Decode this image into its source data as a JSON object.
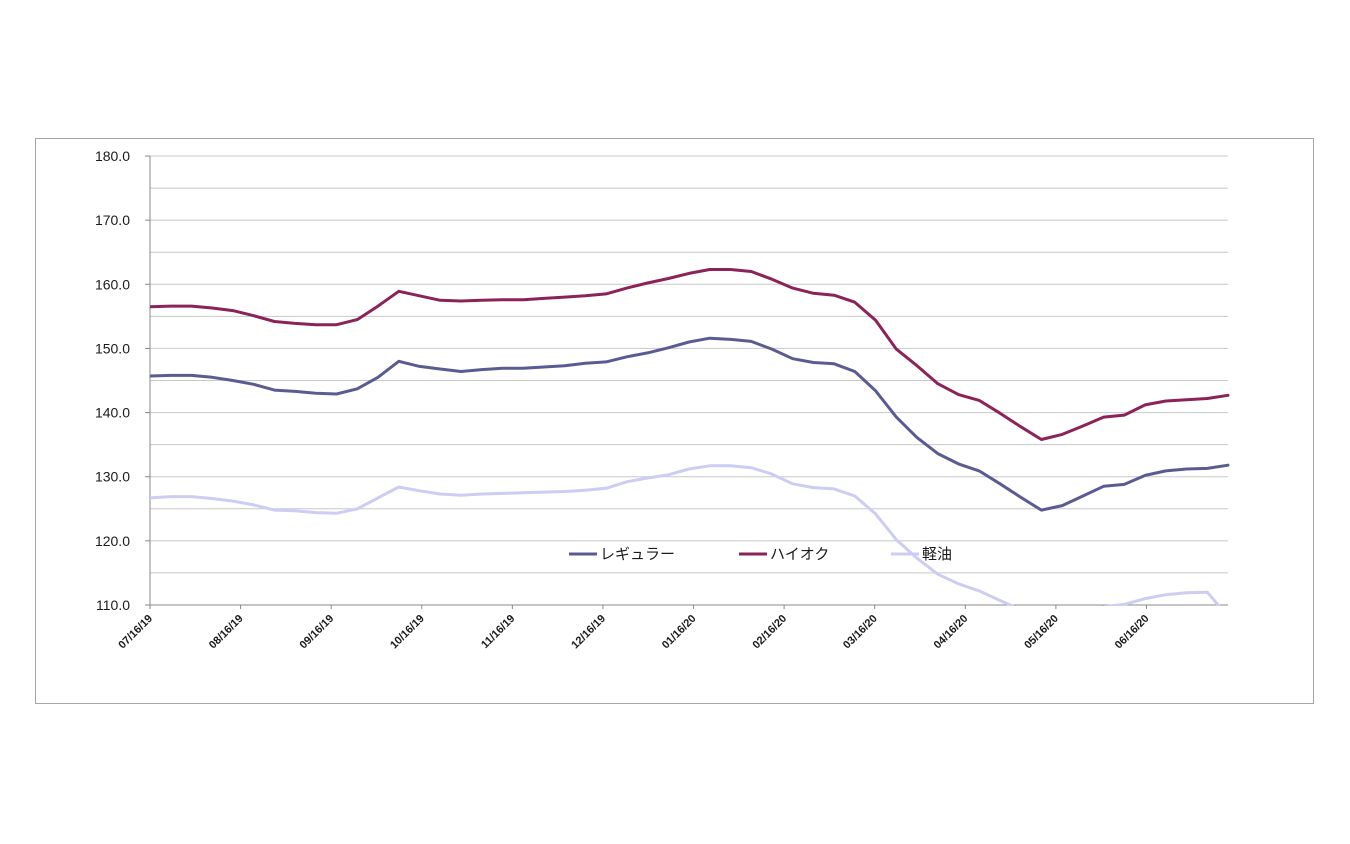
{
  "chart_data": {
    "type": "line",
    "title": "",
    "xlabel": "",
    "ylabel": "",
    "ylim": [
      110,
      180
    ],
    "yticks": [
      "110.0",
      "120.0",
      "130.0",
      "140.0",
      "150.0",
      "160.0",
      "170.0",
      "180.0"
    ],
    "grid": true,
    "legend_position": "bottom-center (inside plot)",
    "x_tick_labels": [
      "07/16/19",
      "08/16/19",
      "09/16/19",
      "10/16/19",
      "11/16/19",
      "12/16/19",
      "01/16/20",
      "02/16/20",
      "03/16/20",
      "04/16/20",
      "05/16/20",
      "06/16/20"
    ],
    "series": [
      {
        "name": "レギュラー",
        "color": "#5b5b93",
        "values": [
          145.7,
          145.8,
          145.8,
          145.5,
          145.0,
          144.4,
          143.5,
          143.3,
          143.0,
          142.9,
          143.7,
          145.5,
          148.0,
          147.2,
          146.8,
          146.4,
          146.7,
          146.9,
          146.9,
          147.1,
          147.3,
          147.7,
          147.9,
          148.7,
          149.3,
          150.1,
          151.0,
          151.6,
          151.4,
          151.1,
          149.9,
          148.4,
          147.8,
          147.6,
          146.4,
          143.4,
          139.3,
          136.1,
          133.6,
          132.0,
          130.9,
          128.9,
          126.8,
          124.8,
          125.5,
          127.0,
          128.5,
          128.8,
          130.2,
          130.9,
          131.2,
          131.3,
          131.8
        ]
      },
      {
        "name": "ハイオク",
        "color": "#8b2259",
        "values": [
          156.5,
          156.6,
          156.6,
          156.3,
          155.9,
          155.1,
          154.2,
          153.9,
          153.7,
          153.7,
          154.5,
          156.6,
          158.9,
          158.2,
          157.5,
          157.4,
          157.5,
          157.6,
          157.6,
          157.8,
          158.0,
          158.2,
          158.5,
          159.4,
          160.2,
          160.9,
          161.7,
          162.3,
          162.3,
          162.0,
          160.8,
          159.4,
          158.6,
          158.3,
          157.2,
          154.4,
          149.9,
          147.3,
          144.5,
          142.8,
          141.9,
          139.9,
          137.8,
          135.8,
          136.6,
          137.9,
          139.3,
          139.6,
          141.2,
          141.8,
          142.0,
          142.2,
          142.7
        ]
      },
      {
        "name": "軽油",
        "color": "#ccccf5",
        "values": [
          126.7,
          126.9,
          126.9,
          126.6,
          126.2,
          125.6,
          124.8,
          124.7,
          124.4,
          124.3,
          125.0,
          126.7,
          128.4,
          127.8,
          127.3,
          127.1,
          127.3,
          127.4,
          127.5,
          127.6,
          127.7,
          127.9,
          128.2,
          129.2,
          129.8,
          130.3,
          131.2,
          131.7,
          131.7,
          131.4,
          130.4,
          128.9,
          128.3,
          128.1,
          127.0,
          124.2,
          120.2,
          117.3,
          114.8,
          113.3,
          112.2,
          110.7,
          109.3,
          108.1,
          107.3,
          108.5,
          109.7,
          110.1,
          111.0,
          111.6,
          111.9,
          112.0,
          108.2
        ]
      }
    ]
  }
}
